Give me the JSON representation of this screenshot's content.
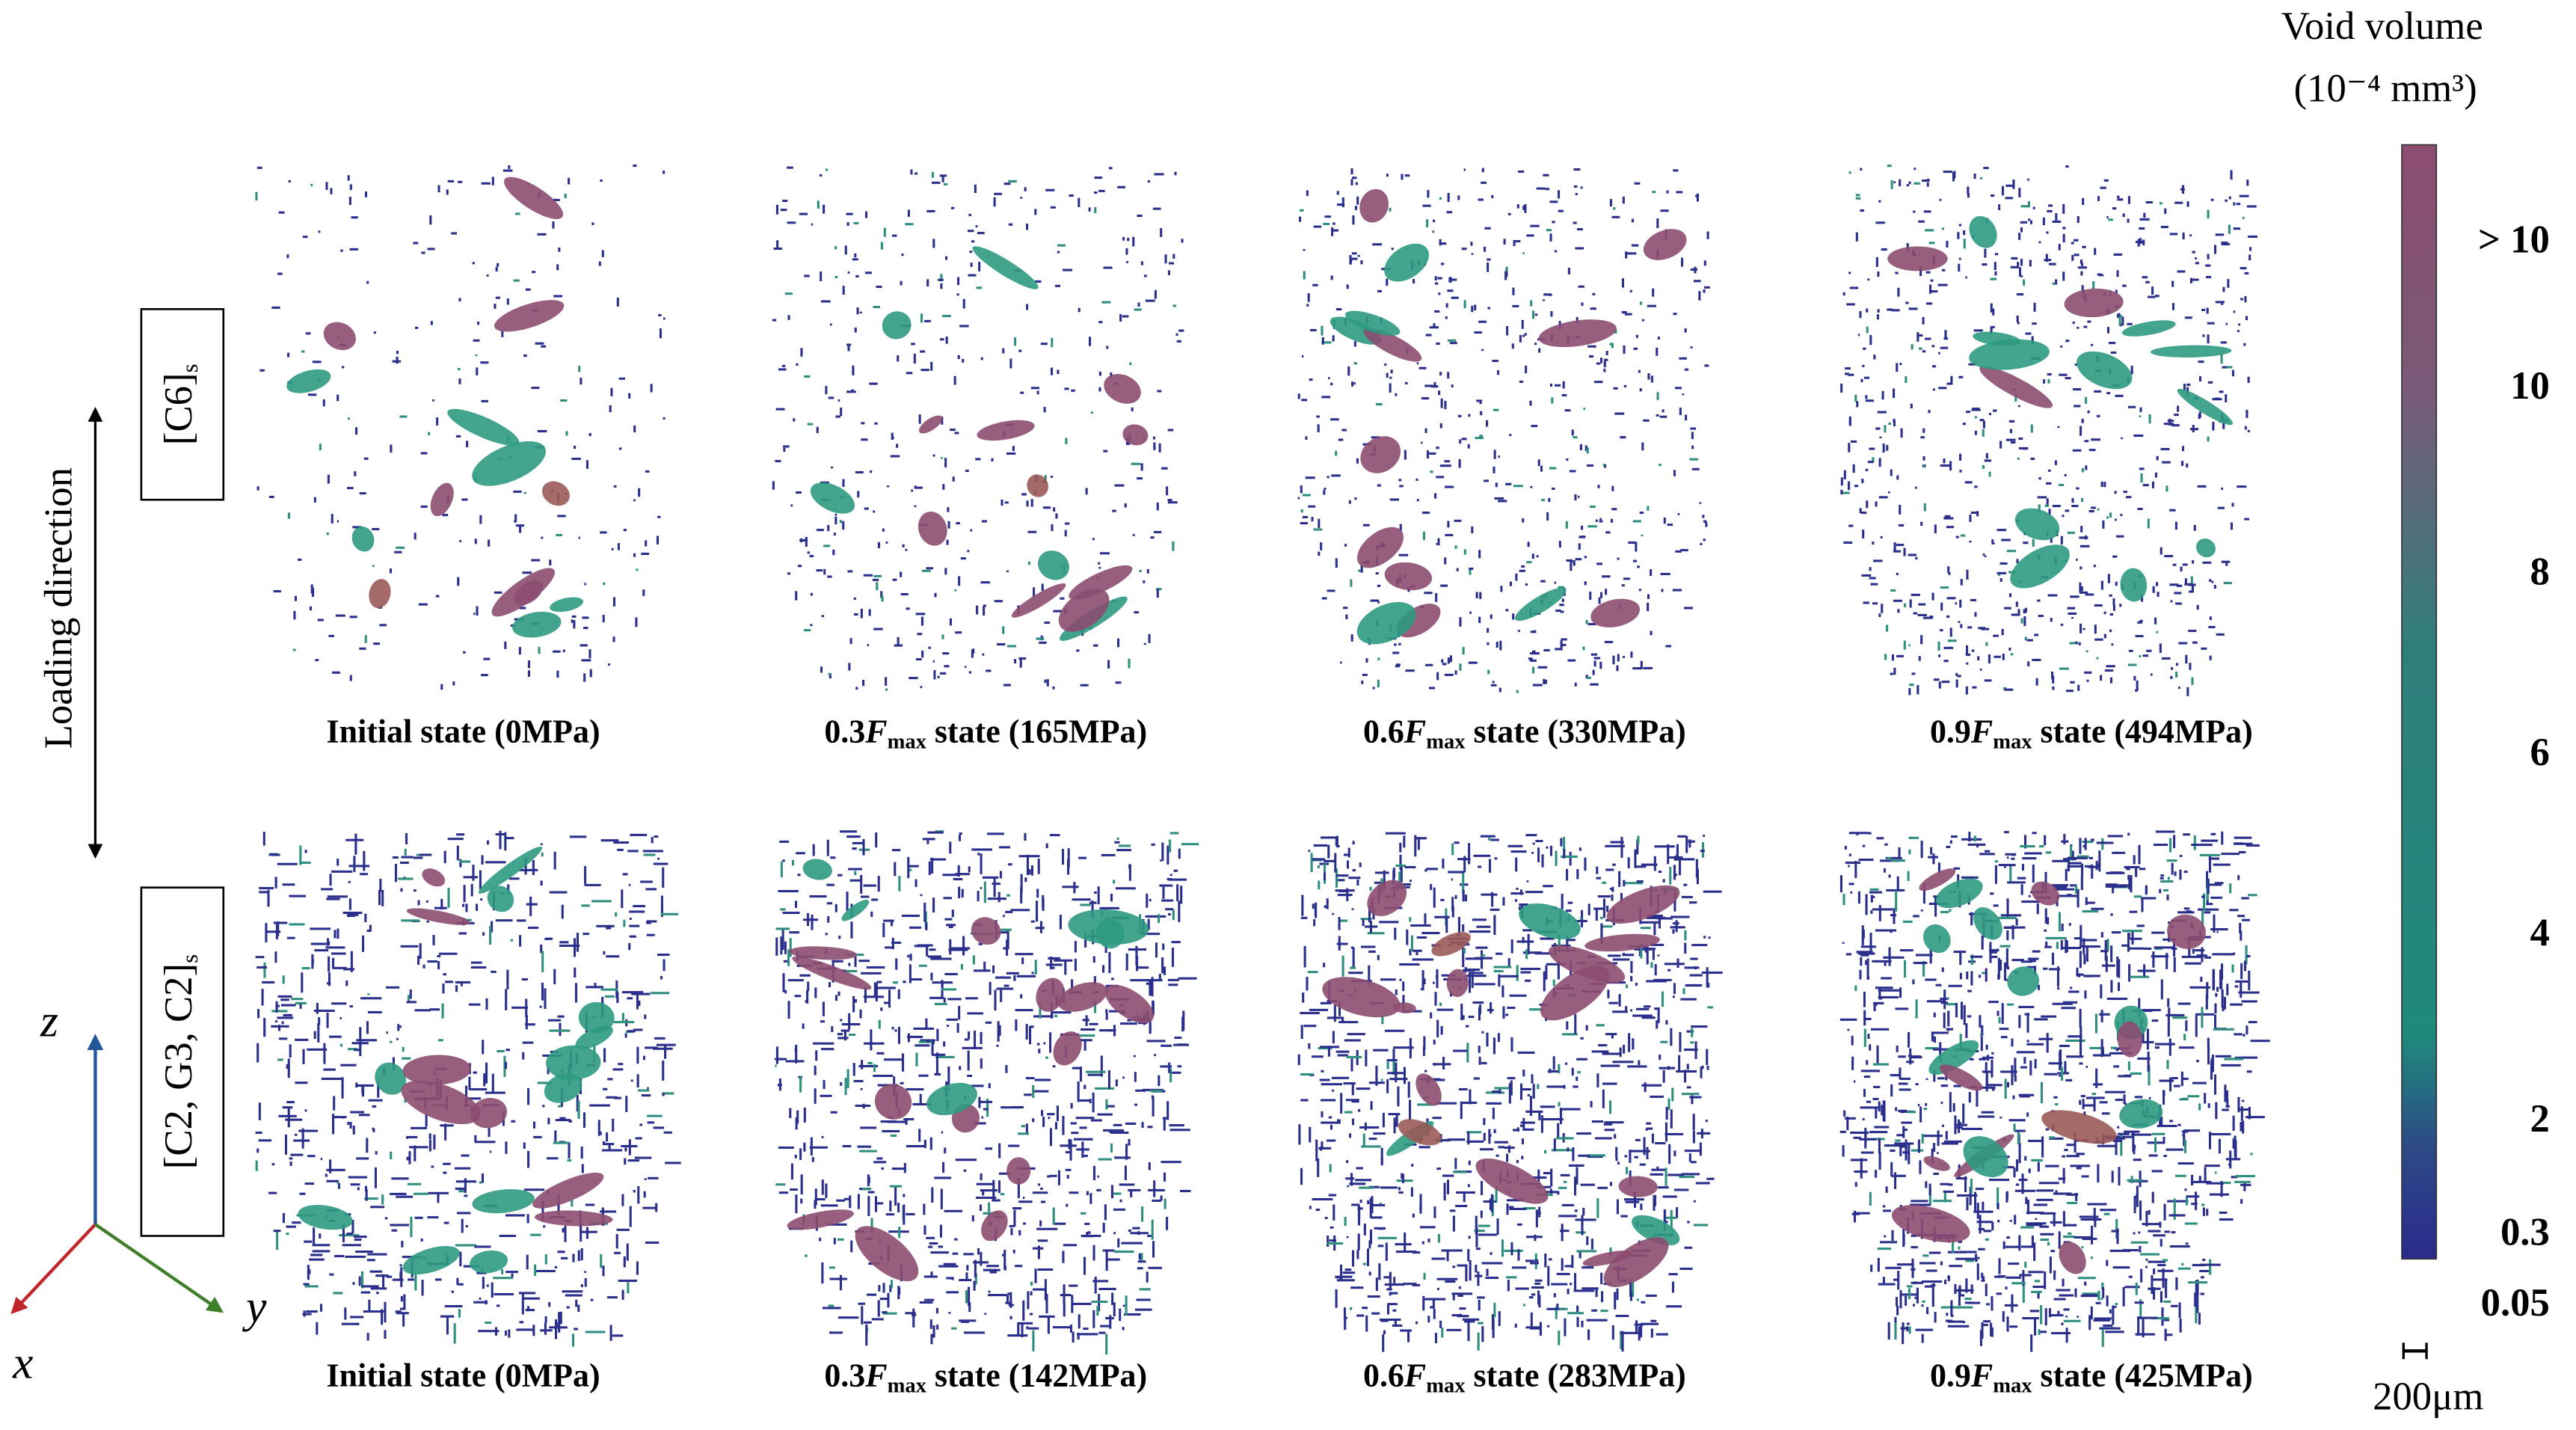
{
  "colorbar": {
    "title": [
      "Void volume",
      "(10⁻⁴ mm³)"
    ],
    "ticks": [
      "> 10",
      "10",
      "8",
      "6",
      "4",
      "2",
      "0.3",
      "0.05"
    ]
  },
  "loading_direction": "Loading direction",
  "rows": [
    {
      "label": {
        "text": "[C6]",
        "sub": "s"
      },
      "captions": [
        {
          "text": "Initial state (0MPa)"
        },
        {
          "coef": "0.3",
          "symbol": "F",
          "sub": "max",
          "text": "state  (165MPa)"
        },
        {
          "coef": "0.6",
          "symbol": "F",
          "sub": "max",
          "text": "state  (330MPa)"
        },
        {
          "coef": "0.9",
          "symbol": "F",
          "sub": "max",
          "text": "state  (494MPa)"
        }
      ]
    },
    {
      "label": {
        "text": "[C2, G3, C2]",
        "sub": "s"
      },
      "captions": [
        {
          "text": "Initial state (0MPa)"
        },
        {
          "coef": "0.3",
          "symbol": "F",
          "sub": "max",
          "text": "state  (142MPa)"
        },
        {
          "coef": "0.6",
          "symbol": "F",
          "sub": "max",
          "text": "state  (283MPa)"
        },
        {
          "coef": "0.9",
          "symbol": "F",
          "sub": "max",
          "text": "state  (425MPa)"
        }
      ]
    }
  ],
  "axes": {
    "z": "z",
    "x": "x",
    "y": "y"
  },
  "scale_bar": "200μm"
}
